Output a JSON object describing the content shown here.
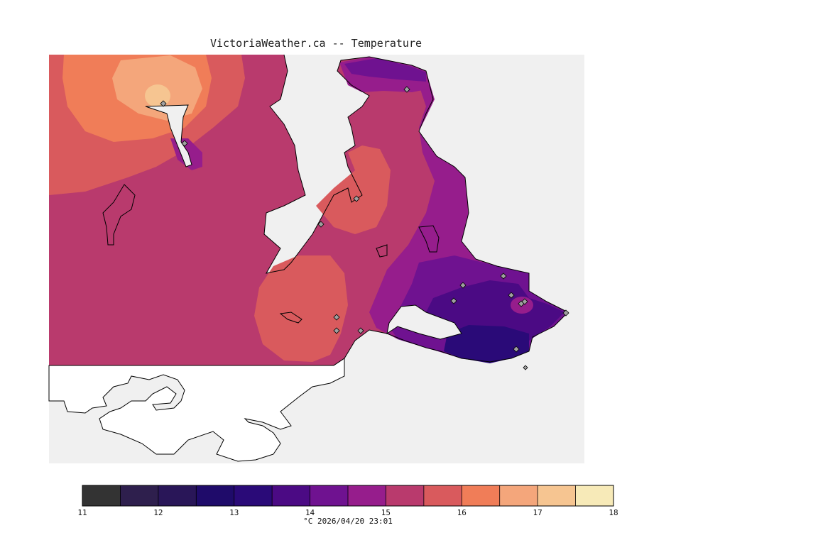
{
  "title": "VictoriaWeather.ca -- Temperature",
  "footer": "°C  2026/04/20 23:01",
  "colorbar": {
    "ticks": [
      "11",
      "12",
      "13",
      "14",
      "15",
      "16",
      "17",
      "18"
    ],
    "colors": [
      "#333333",
      "#2e1f4d",
      "#291658",
      "#1f0b6a",
      "#2a0a78",
      "#4b0a84",
      "#6f1290",
      "#961d8c",
      "#b93a6d",
      "#d95a5d",
      "#f07d58",
      "#f4a67b",
      "#f6c591",
      "#f7eab8"
    ]
  },
  "palette": {
    "water": "#f0f0f0",
    "unmapped_land": "#ffffff",
    "coast": "#000000",
    "station": "#a0a0a0"
  },
  "map": {
    "type": "temperature_contour",
    "stations_marked": 17
  }
}
